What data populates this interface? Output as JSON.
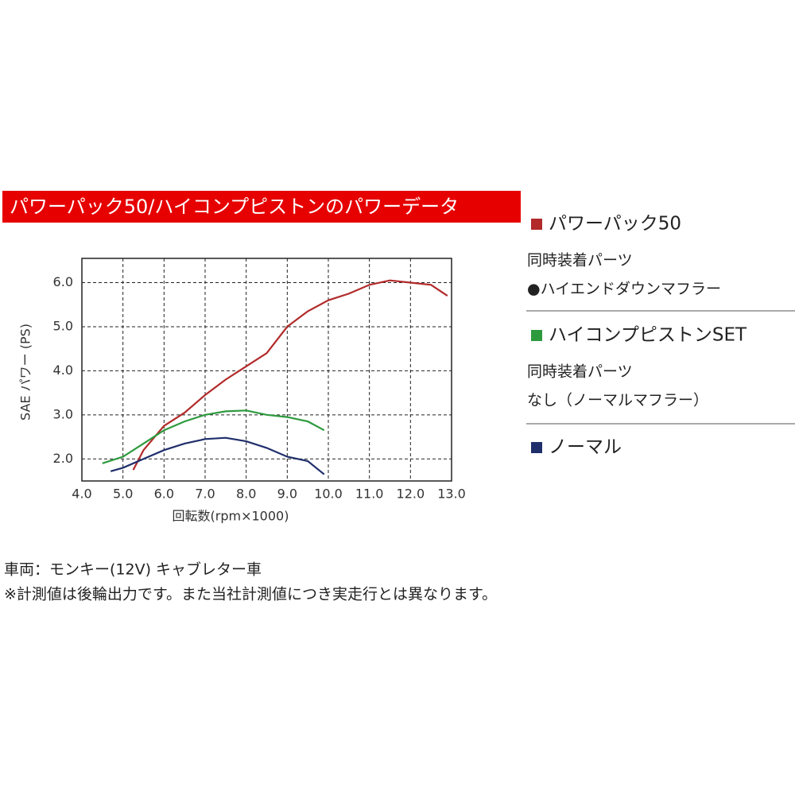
{
  "chart_data": {
    "type": "line",
    "title": "パワーパック50/ハイコンプピストンのパワーデータ",
    "x_label": "回転数(rpm×1000)",
    "y_label": "SAE パワー (PS)",
    "xlim": [
      4.0,
      13.0
    ],
    "ylim": [
      1.5,
      6.55
    ],
    "xticks": [
      {
        "value": 4,
        "label": "4.0"
      },
      {
        "value": 5,
        "label": "5.0"
      },
      {
        "value": 6,
        "label": "6.0"
      },
      {
        "value": 7,
        "label": "7.0"
      },
      {
        "value": 8,
        "label": "8.0"
      },
      {
        "value": 9,
        "label": "9.0"
      },
      {
        "value": 10,
        "label": "10.0"
      },
      {
        "value": 11,
        "label": "11.0"
      },
      {
        "value": 12,
        "label": "12.0"
      },
      {
        "value": 13,
        "label": "13.0"
      }
    ],
    "yticks": [
      {
        "value": 2,
        "label": "2.0"
      },
      {
        "value": 3,
        "label": "3.0"
      },
      {
        "value": 4,
        "label": "4.0"
      },
      {
        "value": 5,
        "label": "5.0"
      },
      {
        "value": 6,
        "label": "6.0"
      }
    ],
    "grid": true,
    "series": [
      {
        "name": "パワーパック50",
        "color": "#b22a2a",
        "parts_label": "同時装着パーツ",
        "parts": "●ハイエンドダウンマフラー",
        "x": [
          5.25,
          5.5,
          6.0,
          6.5,
          7.0,
          7.5,
          8.0,
          8.5,
          9.0,
          9.5,
          10.0,
          10.5,
          11.0,
          11.5,
          12.0,
          12.5,
          12.9
        ],
        "values": [
          1.75,
          2.2,
          2.75,
          3.05,
          3.45,
          3.8,
          4.1,
          4.4,
          5.0,
          5.35,
          5.6,
          5.75,
          5.95,
          6.05,
          6.0,
          5.95,
          5.7
        ]
      },
      {
        "name": "ハイコンプピストンSET",
        "color": "#2e9a3e",
        "parts_label": "同時装着パーツ",
        "parts": "なし（ノーマルマフラー）",
        "x": [
          4.5,
          5.0,
          5.5,
          6.0,
          6.5,
          7.0,
          7.5,
          8.0,
          8.5,
          9.0,
          9.5,
          9.9
        ],
        "values": [
          1.9,
          2.05,
          2.35,
          2.65,
          2.85,
          3.0,
          3.08,
          3.1,
          3.0,
          2.95,
          2.85,
          2.65
        ]
      },
      {
        "name": "ノーマル",
        "color": "#1f2f6b",
        "x": [
          4.7,
          5.0,
          5.5,
          6.0,
          6.5,
          7.0,
          7.5,
          8.0,
          8.5,
          9.0,
          9.5,
          9.9
        ],
        "values": [
          1.72,
          1.8,
          2.0,
          2.2,
          2.35,
          2.45,
          2.48,
          2.4,
          2.25,
          2.05,
          1.95,
          1.65
        ]
      }
    ],
    "notes": [
      "車両：モンキー(12V) キャブレター車",
      "※計測値は後輪出力です。また当社計測値につき実走行とは異なります。"
    ]
  }
}
